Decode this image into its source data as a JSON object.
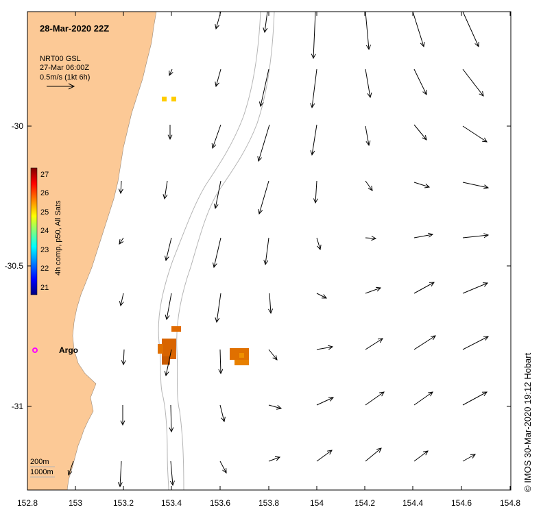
{
  "map": {
    "title": "28-Mar-2020 22Z",
    "current_legend": {
      "source": "NRT00 GSL",
      "time": "27-Mar 06:00Z",
      "scale": "0.5m/s (1kt 6h)"
    },
    "colorbar": {
      "label": "4h comp, p50, All Sats",
      "ticks": [
        "27",
        "26",
        "25",
        "24",
        "23",
        "22",
        "21"
      ],
      "min": 21,
      "max": 27,
      "colors": [
        "#00007f",
        "#0000ff",
        "#007fff",
        "#00ffff",
        "#7fff7f",
        "#ffff00",
        "#ff7f00",
        "#ff0000",
        "#7f0000"
      ]
    },
    "depth_legend": [
      "200m",
      "1000m"
    ],
    "argo_label": "Argo",
    "credit": "© IMOS 30-Mar-2020 19:12 Hobart",
    "x_ticks": [
      "152.8",
      "153",
      "153.2",
      "153.4",
      "153.6",
      "153.8",
      "154",
      "154.2",
      "154.4",
      "154.6",
      "154.8"
    ],
    "y_ticks": [
      "-30",
      "-30.5",
      "-31"
    ],
    "land_color": "#fcc996",
    "argo_color": "#ff00ff"
  }
}
